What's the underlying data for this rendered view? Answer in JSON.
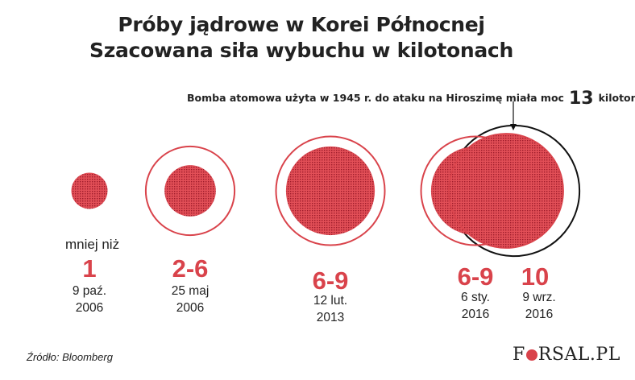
{
  "title_line1": "Próby jądrowe w Korei Północnej",
  "title_line2": "Szacowana siła wybuchu w kilotonach",
  "note": {
    "text": "Bomba atomowa użyta w 1945 r. do ataku na Hiroszimę miała moc",
    "value": "13",
    "unit": "kiloton"
  },
  "chart_data": {
    "type": "bubble",
    "unit": "kilotony",
    "tests": [
      {
        "prefix": "mniej niż",
        "label": "1",
        "date_line1": "9 paź.",
        "date_line2": "2006",
        "min": 1,
        "max": 1
      },
      {
        "prefix": "",
        "label": "2-6",
        "date_line1": "25 maj",
        "date_line2": "2006",
        "min": 2,
        "max": 6
      },
      {
        "prefix": "",
        "label": "6-9",
        "date_line1": "12 lut.",
        "date_line2": "2013",
        "min": 6,
        "max": 9
      },
      {
        "prefix": "",
        "label": "6-9",
        "date_line1": "6 sty.",
        "date_line2": "2016",
        "min": 6,
        "max": 9
      },
      {
        "prefix": "",
        "label": "10",
        "date_line1": "9 wrz.",
        "date_line2": "2016",
        "min": 10,
        "max": 10
      }
    ],
    "reference": {
      "label": "Hiroszima 1945",
      "value": 13
    }
  },
  "colors": {
    "accent": "#d9434b",
    "fill_dots": "#c0283a",
    "reference_outline": "#111111"
  },
  "source": "Źródło: Bloomberg",
  "logo": {
    "left": "F",
    "right": "RSAL.PL"
  }
}
